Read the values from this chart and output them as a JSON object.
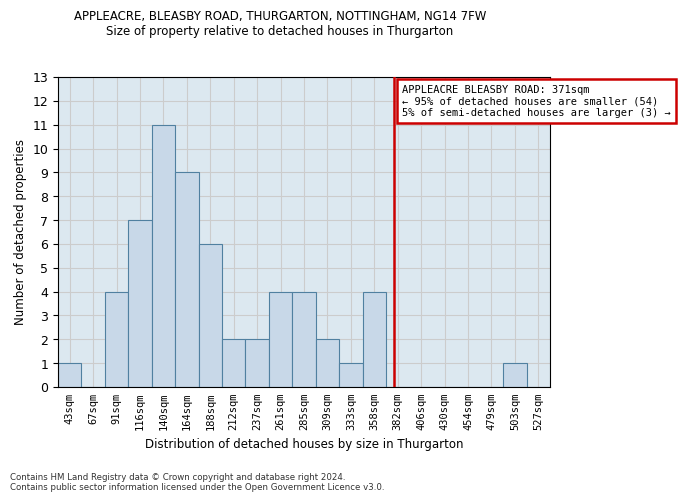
{
  "title1": "APPLEACRE, BLEASBY ROAD, THURGARTON, NOTTINGHAM, NG14 7FW",
  "title2": "Size of property relative to detached houses in Thurgarton",
  "xlabel": "Distribution of detached houses by size in Thurgarton",
  "ylabel": "Number of detached properties",
  "footnote": "Contains HM Land Registry data © Crown copyright and database right 2024.\nContains public sector information licensed under the Open Government Licence v3.0.",
  "bin_labels": [
    "43sqm",
    "67sqm",
    "91sqm",
    "116sqm",
    "140sqm",
    "164sqm",
    "188sqm",
    "212sqm",
    "237sqm",
    "261sqm",
    "285sqm",
    "309sqm",
    "333sqm",
    "358sqm",
    "382sqm",
    "406sqm",
    "430sqm",
    "454sqm",
    "479sqm",
    "503sqm",
    "527sqm"
  ],
  "bar_heights": [
    1,
    0,
    4,
    7,
    11,
    9,
    6,
    2,
    2,
    4,
    4,
    2,
    1,
    4,
    0,
    0,
    0,
    0,
    0,
    1,
    0
  ],
  "bar_color": "#c8d8e8",
  "bar_edge_color": "#5080a0",
  "grid_color": "#cccccc",
  "vline_color": "#cc0000",
  "annotation_text": "APPLEACRE BLEASBY ROAD: 371sqm\n← 95% of detached houses are smaller (54)\n5% of semi-detached houses are larger (3) →",
  "annotation_box_color": "#cc0000",
  "ylim": [
    0,
    13
  ],
  "yticks": [
    0,
    1,
    2,
    3,
    4,
    5,
    6,
    7,
    8,
    9,
    10,
    11,
    12,
    13
  ],
  "bg_color": "#dce8f0"
}
